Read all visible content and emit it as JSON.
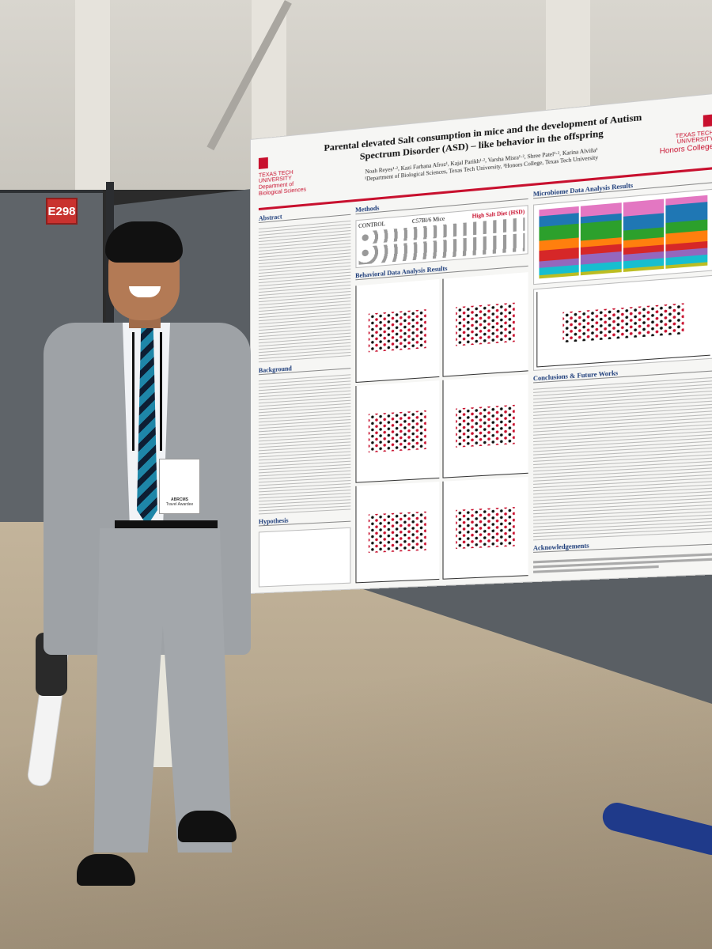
{
  "scene": {
    "booth_number": "E298"
  },
  "poster": {
    "left_logo": {
      "university": "TEXAS TECH UNIVERSITY",
      "department": "Department of Biological Sciences"
    },
    "right_logo": {
      "university": "TEXAS TECH UNIVERSITY",
      "college": "Honors College"
    },
    "title": "Parental elevated Salt consumption in mice and the development of Autism Spectrum Disorder (ASD) – like behavior in the offspring",
    "authors": "Noah Reyes¹·², Kazi Farhana Afroz¹, Kajal Parikh¹·², Varsha Misra¹·², Shree Patel¹·², Karina Alviña¹",
    "affiliations": "¹Department of Biological Sciences, Texas Tech University, ²Honors College, Texas Tech University",
    "sections": {
      "abstract": "Abstract",
      "background": "Background",
      "hypothesis": "Hypothesis",
      "methods": "Methods",
      "behavioral": "Behavioral Data Analysis Results",
      "microbiome": "Microbiome Data Analysis Results",
      "conclusions": "Conclusions & Future Works",
      "acknowledgements": "Acknowledgements"
    },
    "methods": {
      "control": "CONTROL",
      "strain": "C57Bl/6 Mice",
      "hsd": "High Salt Diet (HSD)"
    },
    "microbiome_chart": {
      "colors": [
        "#e377c2",
        "#1f77b4",
        "#2ca02c",
        "#ff7f0e",
        "#d62728",
        "#9467bd",
        "#17becf",
        "#bcbd22"
      ]
    }
  },
  "person": {
    "badge_line1": "ABRCMS",
    "badge_line2": "Travel Awardee"
  }
}
